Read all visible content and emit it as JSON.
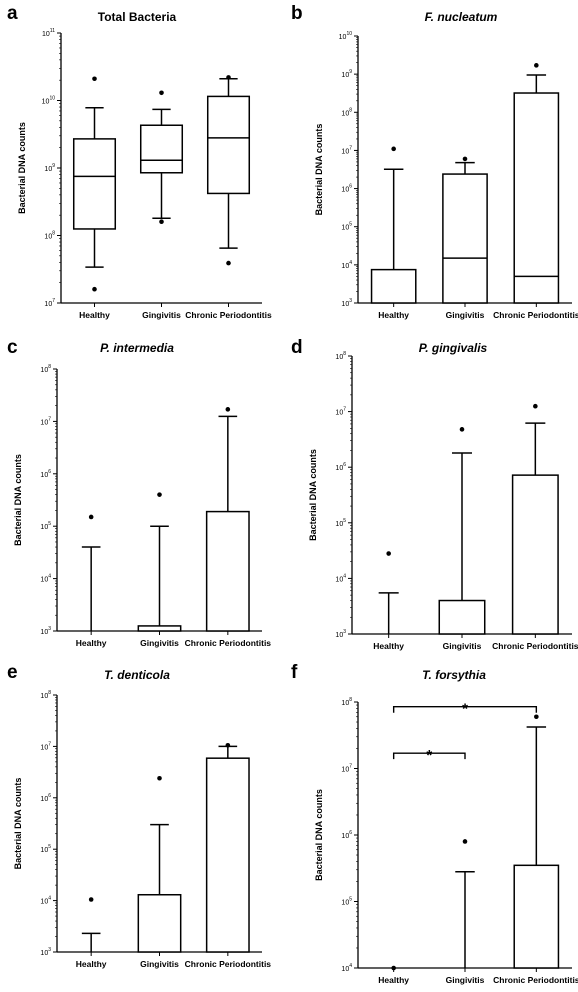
{
  "chart_data": [
    {
      "panel": "a",
      "type": "box",
      "title": "Total Bacteria",
      "title_italic": false,
      "ylabel": "Bacterial DNA counts",
      "yscale": "log",
      "ylim": [
        10000000,
        100000000000
      ],
      "tick_exponents": [
        7,
        8,
        9,
        10,
        11
      ],
      "categories": [
        "Healthy",
        "Gingivitis",
        "Chronic Periodontitis"
      ],
      "boxes": [
        {
          "whisker_low": 34000000,
          "q1": 125000000,
          "median": 750000000,
          "q3": 2700000000,
          "whisker_high": 7800000000,
          "outliers": [
            16000000,
            21000000000
          ]
        },
        {
          "whisker_low": 180000000,
          "q1": 850000000,
          "median": 1300000000,
          "q3": 4300000000,
          "whisker_high": 7400000000,
          "outliers": [
            160000000,
            13000000000
          ]
        },
        {
          "whisker_low": 65000000,
          "q1": 420000000,
          "median": 2800000000,
          "q3": 11500000000,
          "whisker_high": 21000000000,
          "outliers": [
            39000000,
            22000000000
          ]
        }
      ],
      "annotations": []
    },
    {
      "panel": "b",
      "type": "box",
      "title": "F. nucleatum",
      "title_italic": true,
      "ylabel": "Bacterial DNA counts",
      "yscale": "log",
      "ylim": [
        1000,
        10000000000
      ],
      "tick_exponents": [
        3,
        4,
        5,
        6,
        7,
        8,
        9,
        10
      ],
      "categories": [
        "Healthy",
        "Gingivitis",
        "Chronic Periodontitis"
      ],
      "boxes": [
        {
          "whisker_low": 1000,
          "q1": 1000,
          "median": 1000,
          "q3": 7500,
          "whisker_high": 3200000,
          "outliers": [
            11000000
          ]
        },
        {
          "whisker_low": 1000,
          "q1": 1000,
          "median": 15000,
          "q3": 2400000,
          "whisker_high": 4800000,
          "outliers": [
            6000000
          ]
        },
        {
          "whisker_low": 1000,
          "q1": 1000,
          "median": 5000,
          "q3": 320000000,
          "whisker_high": 950000000,
          "outliers": [
            1700000000
          ]
        }
      ],
      "annotations": []
    },
    {
      "panel": "c",
      "type": "box",
      "title": "P. intermedia",
      "title_italic": true,
      "ylabel": "Bacterial DNA counts",
      "yscale": "log",
      "ylim": [
        1000,
        100000000
      ],
      "tick_exponents": [
        3,
        4,
        5,
        6,
        7,
        8
      ],
      "categories": [
        "Healthy",
        "Gingivitis",
        "Chronic Periodontitis"
      ],
      "boxes": [
        {
          "whisker_low": 1000,
          "q1": 1000,
          "median": 1000,
          "q3": 1000,
          "whisker_high": 40000,
          "outliers": [
            150000
          ]
        },
        {
          "whisker_low": 1000,
          "q1": 1000,
          "median": 1000,
          "q3": 1250,
          "whisker_high": 100000,
          "outliers": [
            400000
          ]
        },
        {
          "whisker_low": 1000,
          "q1": 1000,
          "median": 1000,
          "q3": 190000,
          "whisker_high": 12500000,
          "outliers": [
            17000000
          ]
        }
      ],
      "annotations": []
    },
    {
      "panel": "d",
      "type": "box",
      "title": "P. gingivalis",
      "title_italic": true,
      "ylabel": "Bacterial DNA counts",
      "yscale": "log",
      "ylim": [
        1000,
        100000000
      ],
      "tick_exponents": [
        3,
        4,
        5,
        6,
        7,
        8
      ],
      "categories": [
        "Healthy",
        "Gingivitis",
        "Chronic Periodontitis"
      ],
      "boxes": [
        {
          "whisker_low": 1000,
          "q1": 1000,
          "median": 1000,
          "q3": 1000,
          "whisker_high": 5500,
          "outliers": [
            28000
          ]
        },
        {
          "whisker_low": 1000,
          "q1": 1000,
          "median": 1000,
          "q3": 4000,
          "whisker_high": 1800000,
          "outliers": [
            4800000
          ]
        },
        {
          "whisker_low": 1000,
          "q1": 1000,
          "median": 1000,
          "q3": 720000,
          "whisker_high": 6200000,
          "outliers": [
            12500000
          ]
        }
      ],
      "annotations": []
    },
    {
      "panel": "e",
      "type": "box",
      "title": "T. denticola",
      "title_italic": true,
      "ylabel": "Bacterial DNA counts",
      "yscale": "log",
      "ylim": [
        1000,
        100000000
      ],
      "tick_exponents": [
        3,
        4,
        5,
        6,
        7,
        8
      ],
      "categories": [
        "Healthy",
        "Gingivitis",
        "Chronic Periodontitis"
      ],
      "boxes": [
        {
          "whisker_low": 1000,
          "q1": 1000,
          "median": 1000,
          "q3": 1000,
          "whisker_high": 2300,
          "outliers": [
            10500
          ]
        },
        {
          "whisker_low": 1000,
          "q1": 1000,
          "median": 1000,
          "q3": 13000,
          "whisker_high": 300000,
          "outliers": [
            2400000
          ]
        },
        {
          "whisker_low": 1000,
          "q1": 1000,
          "median": 1000,
          "q3": 5900000,
          "whisker_high": 10000000,
          "outliers": [
            10500000
          ]
        }
      ],
      "annotations": []
    },
    {
      "panel": "f",
      "type": "box",
      "title": "T. forsythia",
      "title_italic": true,
      "ylabel": "Bacterial DNA counts",
      "yscale": "log",
      "ylim": [
        10000,
        100000000
      ],
      "tick_exponents": [
        4,
        5,
        6,
        7,
        8
      ],
      "categories": [
        "Healthy",
        "Gingivitis",
        "Chronic Periodontitis"
      ],
      "boxes": [
        {
          "whisker_low": 10000,
          "q1": 10000,
          "median": 10000,
          "q3": 10000,
          "whisker_high": 10000,
          "outliers": [
            10000
          ]
        },
        {
          "whisker_low": 10000,
          "q1": 10000,
          "median": 10000,
          "q3": 10000,
          "whisker_high": 280000,
          "outliers": [
            800000
          ]
        },
        {
          "whisker_low": 10000,
          "q1": 10000,
          "median": 10000,
          "q3": 350000,
          "whisker_high": 42000000,
          "outliers": [
            60000000
          ]
        }
      ],
      "annotations": [
        {
          "from": "Healthy",
          "to": "Gingivitis",
          "label": "*"
        },
        {
          "from": "Healthy",
          "to": "Chronic Periodontitis",
          "label": "*"
        }
      ]
    }
  ]
}
